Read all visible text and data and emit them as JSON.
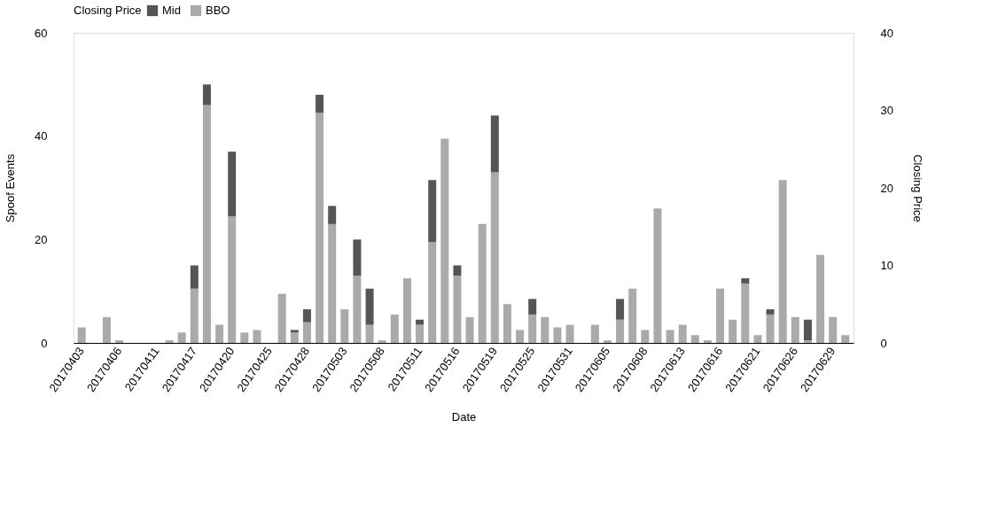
{
  "chart_data": {
    "type": "bar",
    "stacked": true,
    "xlabel": "Date",
    "ylabel": "Spoof Events",
    "y2label": "Closing Price",
    "legend_title": "Closing Price",
    "legend": "top",
    "grid": false,
    "categories": [
      "20170403",
      null,
      null,
      "20170406",
      null,
      null,
      "20170411",
      null,
      null,
      "20170417",
      null,
      null,
      "20170420",
      null,
      null,
      "20170425",
      null,
      null,
      "20170428",
      null,
      null,
      "20170503",
      null,
      null,
      "20170508",
      null,
      null,
      "20170511",
      null,
      null,
      "20170516",
      null,
      null,
      "20170519",
      null,
      null,
      "20170525",
      null,
      null,
      "20170531",
      null,
      null,
      "20170605",
      null,
      null,
      "20170608",
      null,
      null,
      "20170613",
      null,
      null,
      "20170616",
      null,
      null,
      "20170621",
      null,
      null,
      "20170626",
      null,
      null,
      "20170629",
      null
    ],
    "ylim": [
      0,
      60
    ],
    "yticks": [
      0,
      20,
      40,
      60
    ],
    "y2lim": [
      0,
      40
    ],
    "y2ticks": [
      0,
      10,
      20,
      30,
      40
    ],
    "series": [
      {
        "name": "BBO",
        "color": "#aaaaaa",
        "values": [
          3,
          0,
          5,
          0.5,
          0,
          0,
          0,
          0.5,
          2,
          10.5,
          46,
          3.5,
          24.5,
          2,
          2.5,
          0,
          9.5,
          2,
          4,
          44.5,
          23,
          6.5,
          13,
          3.5,
          0.5,
          5.5,
          12.5,
          3.5,
          19.5,
          39.5,
          13,
          5,
          23,
          33,
          7.5,
          2.5,
          5.5,
          5,
          3,
          3.5,
          0,
          3.5,
          0.5,
          4.5,
          10.5,
          2.5,
          26,
          2.5,
          3.5,
          1.5,
          0.5,
          10.5,
          4.5,
          11.5,
          1.5,
          5.5,
          31.5,
          5,
          0.5,
          17,
          5,
          1.5
        ]
      },
      {
        "name": "Mid",
        "color": "#555555",
        "values": [
          0,
          0,
          0,
          0,
          0,
          0,
          0,
          0,
          0,
          4.5,
          4,
          0,
          12.5,
          0,
          0,
          0,
          0,
          0.5,
          2.5,
          3.5,
          3.5,
          0,
          7,
          7,
          0,
          0,
          0,
          1,
          12,
          0,
          2,
          0,
          0,
          11,
          0,
          0,
          3,
          0,
          0,
          0,
          0,
          0,
          0,
          4,
          0,
          0,
          0,
          0,
          0,
          0,
          0,
          0,
          0,
          1,
          0,
          1,
          0,
          0,
          4,
          0,
          0,
          0
        ]
      }
    ]
  }
}
